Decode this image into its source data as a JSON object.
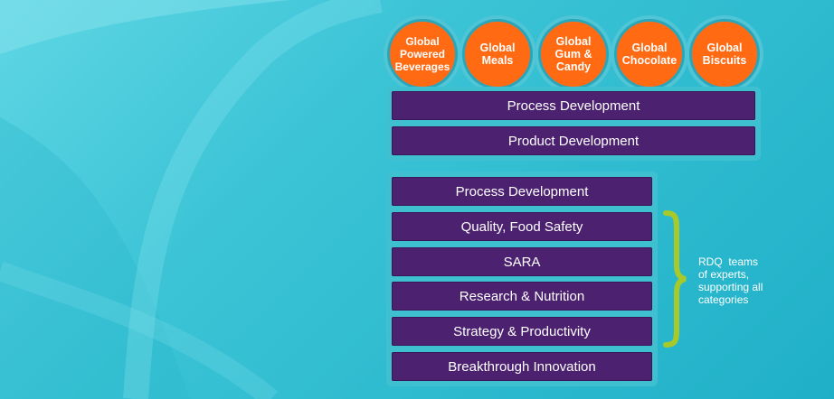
{
  "categories": [
    {
      "label": "Global\nPowered\nBeverages"
    },
    {
      "label": "Global\nMeals"
    },
    {
      "label": "Global\nGum &\nCandy"
    },
    {
      "label": "Global\nChocolate"
    },
    {
      "label": "Global\nBiscuits"
    }
  ],
  "category_bars": [
    "Process Development",
    "Product Development"
  ],
  "rdq_bars": [
    "Process Development",
    "Quality, Food Safety",
    "SARA",
    "Research & Nutrition",
    "Strategy & Productivity",
    "Breakthrough Innovation"
  ],
  "brace_note": "RDQ  teams\nof experts,\nsupporting all\ncategories",
  "colors": {
    "orange": "#ff6a13",
    "purple": "#4b2170",
    "brace": "#a8c92a"
  }
}
